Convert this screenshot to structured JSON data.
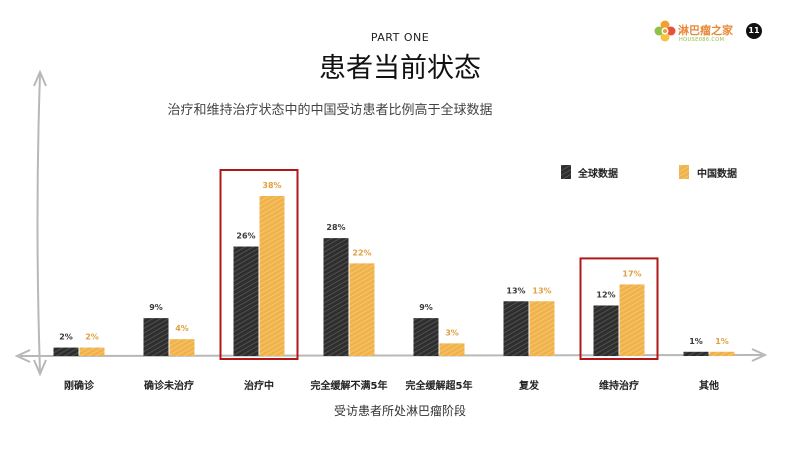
{
  "header": {
    "part": "PART ONE",
    "title": "患者当前状态",
    "subtitle": "治疗和维持治疗状态中的中国受访患者比例高于全球数据"
  },
  "logo": {
    "name": "淋巴瘤之家",
    "sub": "HOUSE086.COM",
    "page_number": "11"
  },
  "colors": {
    "global": "#3a3a3a",
    "china": "#f0b24a",
    "china_label": "#e0a040",
    "highlight": "#b01818",
    "axis": "#b8b8b8"
  },
  "chart_data": {
    "type": "bar",
    "title": "",
    "xlabel": "受访患者所处淋巴瘤阶段",
    "ylabel": "",
    "categories": [
      "刚确诊",
      "确诊未治疗",
      "治疗中",
      "完全缓解不满5年",
      "完全缓解超5年",
      "复发",
      "维持治疗",
      "其他"
    ],
    "series": [
      {
        "name": "全球数据",
        "values": [
          2,
          9,
          26,
          28,
          9,
          13,
          12,
          1
        ],
        "labels": [
          "2%",
          "9%",
          "26%",
          "28%",
          "9%",
          "13%",
          "12%",
          "1%"
        ]
      },
      {
        "name": "中国数据",
        "values": [
          2,
          4,
          38,
          22,
          3,
          13,
          17,
          1
        ],
        "labels": [
          "2%",
          "4%",
          "38%",
          "22%",
          "3%",
          "13%",
          "17%",
          "1%"
        ]
      }
    ],
    "ylim": [
      0,
      40
    ],
    "grid": false,
    "legend": "top-right",
    "highlighted": [
      "治疗中",
      "维持治疗"
    ]
  }
}
